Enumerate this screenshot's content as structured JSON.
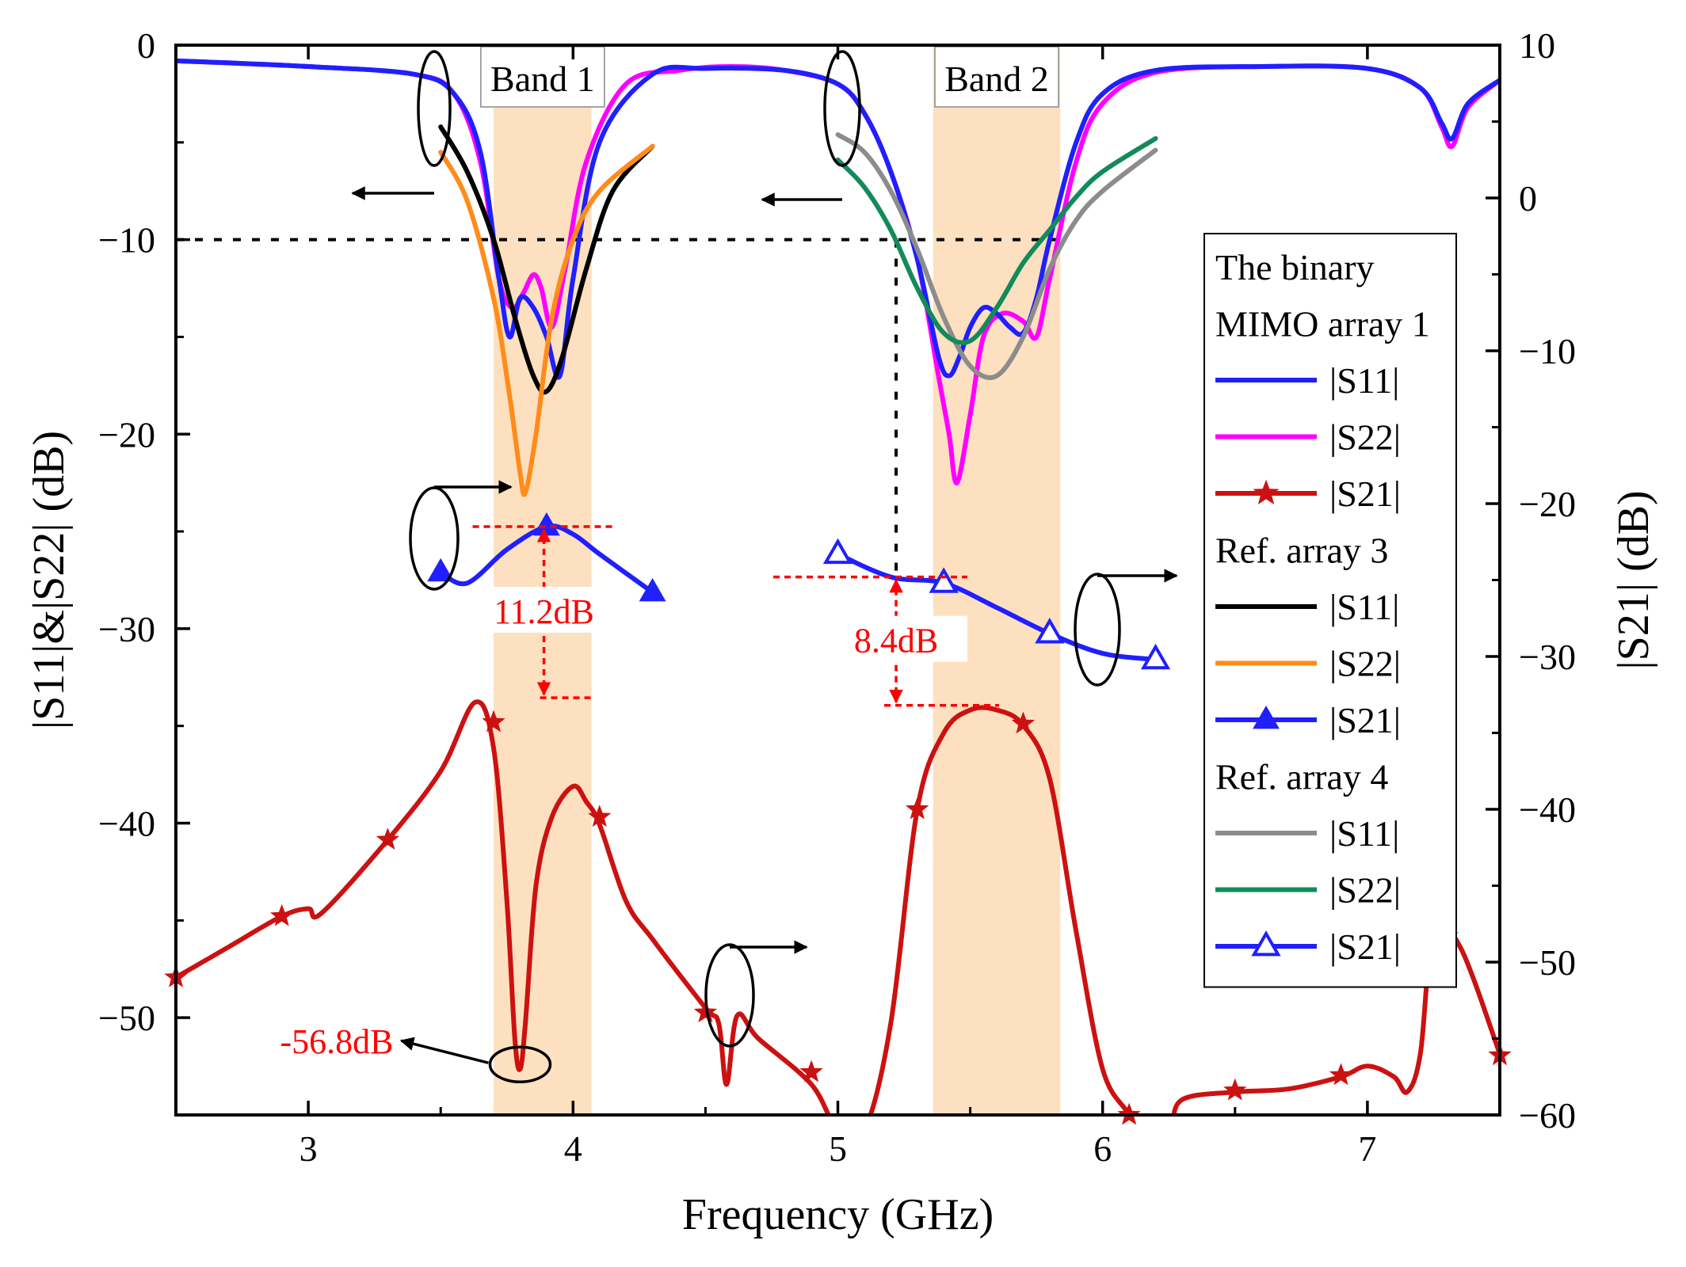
{
  "chart_data": {
    "type": "line",
    "xlabel": "Frequency (GHz)",
    "ylabel": "|S11|&|S22| (dB)",
    "y2label": "|S21| (dB)",
    "xlim": [
      2.5,
      7.5
    ],
    "ylim": [
      -55,
      0
    ],
    "y2lim": [
      -60,
      10
    ],
    "xticks": [
      3,
      4,
      5,
      6,
      7
    ],
    "yticks": [
      0,
      -10,
      -20,
      -30,
      -40,
      -50
    ],
    "y2ticks": [
      10,
      0,
      -10,
      -20,
      -30,
      -40,
      -50,
      -60
    ],
    "x_tick_labels": [
      "3",
      "4",
      "5",
      "6",
      "7"
    ],
    "y_tick_labels": [
      "0",
      "−10",
      "−20",
      "−30",
      "−40",
      "−50"
    ],
    "y2_tick_labels": [
      "10",
      "0",
      "−10",
      "−20",
      "−30",
      "−40",
      "−50",
      "−60"
    ],
    "bands": [
      {
        "label": "Band 1",
        "x0": 3.7,
        "x1": 4.07,
        "color": "#fde0bf"
      },
      {
        "label": "Band 2",
        "x0": 5.36,
        "x1": 5.84,
        "color": "#fde0bf"
      }
    ],
    "reference_line": {
      "y": -10,
      "x_from": 2.5,
      "x_to": 5.85,
      "x_drop": 5.22
    },
    "series": [
      {
        "name": "|S11|",
        "group": "The binary MIMO array 1",
        "axis": "left",
        "color": "#1f1fff",
        "marker": "none",
        "x": [
          2.5,
          3.0,
          3.4,
          3.55,
          3.65,
          3.72,
          3.76,
          3.8,
          3.85,
          3.9,
          3.95,
          4.0,
          4.1,
          4.3,
          4.5,
          4.8,
          5.0,
          5.1,
          5.2,
          5.3,
          5.38,
          5.42,
          5.46,
          5.5,
          5.55,
          5.6,
          5.65,
          5.7,
          5.75,
          5.8,
          5.9,
          6.0,
          6.2,
          6.6,
          7.0,
          7.2,
          7.28,
          7.32,
          7.38,
          7.5
        ],
        "y": [
          -0.8,
          -1.1,
          -1.5,
          -2.5,
          -5.5,
          -12,
          -15,
          -13,
          -13.5,
          -15,
          -17,
          -12,
          -5,
          -1.5,
          -1.2,
          -1.3,
          -2.0,
          -3.5,
          -6.5,
          -11,
          -16,
          -17,
          -16,
          -14.5,
          -13.5,
          -13.8,
          -14.5,
          -14.8,
          -13,
          -10,
          -5,
          -2.5,
          -1.3,
          -1.1,
          -1.2,
          -2.2,
          -4,
          -4.8,
          -3,
          -1.8
        ]
      },
      {
        "name": "|S22|",
        "group": "The binary MIMO array 1",
        "axis": "left",
        "color": "#ff00ff",
        "marker": "none",
        "x": [
          2.5,
          3.0,
          3.4,
          3.55,
          3.65,
          3.72,
          3.77,
          3.81,
          3.85,
          3.88,
          3.92,
          3.97,
          4.05,
          4.2,
          4.4,
          4.6,
          4.8,
          5.0,
          5.1,
          5.2,
          5.3,
          5.38,
          5.42,
          5.45,
          5.5,
          5.55,
          5.62,
          5.7,
          5.75,
          5.8,
          5.9,
          6.0,
          6.2,
          6.6,
          7.0,
          7.2,
          7.28,
          7.32,
          7.38,
          7.5
        ],
        "y": [
          -0.8,
          -1.1,
          -1.5,
          -2.5,
          -6,
          -12,
          -13.5,
          -12.8,
          -11.8,
          -12.5,
          -14.5,
          -11.5,
          -6,
          -2,
          -1.3,
          -1.1,
          -1.3,
          -2.0,
          -3.5,
          -6.5,
          -11,
          -17,
          -20,
          -22.5,
          -19,
          -15,
          -13.8,
          -14.2,
          -15,
          -12,
          -6,
          -3,
          -1.4,
          -1.1,
          -1.2,
          -2.2,
          -4.2,
          -5.2,
          -3.2,
          -1.8
        ]
      },
      {
        "name": "|S21|",
        "group": "The binary MIMO array 1",
        "axis": "right",
        "color": "#cc1111",
        "marker": "star",
        "x": [
          2.5,
          2.7,
          2.9,
          3.0,
          3.05,
          3.3,
          3.5,
          3.63,
          3.7,
          3.75,
          3.78,
          3.8,
          3.82,
          3.86,
          3.92,
          4.0,
          4.05,
          4.1,
          4.2,
          4.3,
          4.5,
          4.55,
          4.58,
          4.62,
          4.7,
          4.9,
          5.0,
          5.1,
          5.2,
          5.3,
          5.4,
          5.5,
          5.6,
          5.7,
          5.8,
          5.9,
          6.0,
          6.1,
          6.15,
          6.25,
          6.3,
          6.5,
          6.7,
          6.9,
          7.0,
          7.1,
          7.15,
          7.2,
          7.25,
          7.35,
          7.5
        ],
        "x_markers": [
          2.5,
          2.9,
          3.3,
          3.7,
          4.1,
          4.5,
          4.9,
          5.3,
          5.7,
          6.1,
          6.5,
          6.9,
          7.3,
          7.5
        ],
        "y": [
          -51,
          -49,
          -47,
          -46.5,
          -46.8,
          -42,
          -37.5,
          -33,
          -36,
          -46,
          -55,
          -57,
          -54,
          -45,
          -40.5,
          -38.5,
          -39.5,
          -41,
          -46,
          -48.5,
          -53,
          -54,
          -58,
          -53.5,
          -55,
          -58,
          -61,
          -61,
          -54,
          -40,
          -35,
          -33.5,
          -33.5,
          -34.5,
          -38,
          -48,
          -57,
          -60,
          -62,
          -61,
          -59,
          -58.5,
          -58.3,
          -57.5,
          -56.8,
          -57.5,
          -58.5,
          -56,
          -48,
          -49,
          -56
        ],
        "y_markers": [
          -51,
          -47,
          -42,
          -34.3,
          -40.5,
          -53.3,
          -57.2,
          -40,
          -34.4,
          -60,
          -58.4,
          -57.4,
          -48.3,
          -56.1
        ]
      },
      {
        "name": "|S11|",
        "group": "Ref. array 3",
        "axis": "left",
        "color": "#000000",
        "marker": "none",
        "x": [
          3.5,
          3.6,
          3.7,
          3.78,
          3.85,
          3.9,
          3.96,
          4.05,
          4.15,
          4.3
        ],
        "y": [
          -4.2,
          -6.5,
          -10,
          -14,
          -17,
          -17.8,
          -16,
          -11.5,
          -7.5,
          -5.2
        ]
      },
      {
        "name": "|S22|",
        "group": "Ref. array 3",
        "axis": "left",
        "color": "#ff8c1a",
        "marker": "none",
        "x": [
          3.5,
          3.6,
          3.7,
          3.76,
          3.8,
          3.82,
          3.86,
          3.92,
          4.0,
          4.1,
          4.3
        ],
        "y": [
          -5.5,
          -8,
          -13,
          -18,
          -22,
          -23,
          -20,
          -14,
          -10,
          -7.5,
          -5.2
        ]
      },
      {
        "name": "|S21|",
        "group": "Ref. array 3",
        "axis": "right",
        "color": "#1f1fff",
        "marker": "filled-triangle",
        "x": [
          3.5,
          3.6,
          3.75,
          3.9,
          4.0,
          4.1,
          4.3
        ],
        "x_markers": [
          3.5,
          3.9,
          4.3
        ],
        "y": [
          -24.5,
          -25.2,
          -23,
          -21.5,
          -22,
          -23.3,
          -25.8
        ],
        "y_markers": [
          -24.5,
          -21.5,
          -25.8
        ]
      },
      {
        "name": "|S11|",
        "group": "Ref. array 4",
        "axis": "left",
        "color": "#8c8c8c",
        "marker": "none",
        "x": [
          5.0,
          5.1,
          5.2,
          5.3,
          5.4,
          5.5,
          5.6,
          5.7,
          5.8,
          5.9,
          6.0,
          6.2
        ],
        "y": [
          -4.6,
          -5.5,
          -7.5,
          -10.5,
          -14,
          -16.5,
          -17,
          -15,
          -11.5,
          -9,
          -7.5,
          -5.4
        ]
      },
      {
        "name": "|S22|",
        "group": "Ref. array 4",
        "axis": "left",
        "color": "#138a5a",
        "marker": "none",
        "x": [
          5.0,
          5.1,
          5.2,
          5.3,
          5.4,
          5.5,
          5.6,
          5.7,
          5.8,
          5.9,
          6.0,
          6.2
        ],
        "y": [
          -5.9,
          -7.3,
          -9.5,
          -12.5,
          -14.8,
          -15.2,
          -13.5,
          -11.2,
          -9.5,
          -7.8,
          -6.5,
          -4.8
        ]
      },
      {
        "name": "|S21|",
        "group": "Ref. array 4",
        "axis": "right",
        "color": "#1f1fff",
        "marker": "open-triangle",
        "x": [
          5.0,
          5.2,
          5.4,
          5.6,
          5.8,
          6.0,
          6.2
        ],
        "x_markers": [
          5.0,
          5.4,
          5.8,
          6.2
        ],
        "y": [
          -23.3,
          -24.8,
          -25.2,
          -26.8,
          -28.5,
          -29.8,
          -30.2
        ],
        "y_markers": [
          -23.3,
          -25.2,
          -28.5,
          -30.2
        ]
      }
    ],
    "legend": {
      "placement": "right",
      "entries": [
        {
          "kind": "header",
          "text": "The binary"
        },
        {
          "kind": "header",
          "text": "MIMO array 1"
        },
        {
          "kind": "line",
          "text": "|S11|",
          "color": "#1f1fff",
          "marker": "none"
        },
        {
          "kind": "line",
          "text": "|S22|",
          "color": "#ff00ff",
          "marker": "none"
        },
        {
          "kind": "line",
          "text": "|S21|",
          "color": "#cc1111",
          "marker": "star"
        },
        {
          "kind": "header",
          "text": "Ref. array 3"
        },
        {
          "kind": "line",
          "text": "|S11|",
          "color": "#000000",
          "marker": "none"
        },
        {
          "kind": "line",
          "text": "|S22|",
          "color": "#ff8c1a",
          "marker": "none"
        },
        {
          "kind": "line",
          "text": "|S21|",
          "color": "#1f1fff",
          "marker": "filled-triangle"
        },
        {
          "kind": "header",
          "text": "Ref. array 4"
        },
        {
          "kind": "line",
          "text": "|S11|",
          "color": "#8c8c8c",
          "marker": "none"
        },
        {
          "kind": "line",
          "text": "|S22|",
          "color": "#138a5a",
          "marker": "none"
        },
        {
          "kind": "line",
          "text": "|S21|",
          "color": "#1f1fff",
          "marker": "open-triangle"
        }
      ]
    },
    "annotations": [
      {
        "text": "11.2dB",
        "x_center": 3.89,
        "upper_y2": -21.5,
        "lower_y2": -32.7,
        "axis": "right"
      },
      {
        "text": "8.4dB",
        "x_center": 5.22,
        "upper_y2": -24.8,
        "lower_y2": -33.2,
        "axis": "right"
      },
      {
        "text": "-56.8dB",
        "x": 3.8,
        "y2": -56.8
      }
    ]
  }
}
